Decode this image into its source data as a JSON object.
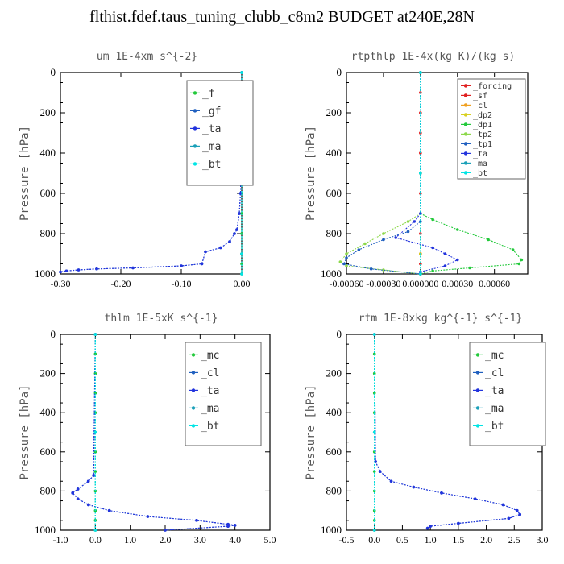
{
  "title": "flthist.fdef.taus_tuning_clubb_c8m2  BUDGET at240E,28N",
  "colors": {
    "green": "#22c93a",
    "blue_dark": "#1f5fbf",
    "blue": "#2233dd",
    "cyan_dark": "#1aa0b8",
    "cyan": "#00e5e5",
    "red": "#e02020",
    "orange": "#f0a020",
    "yellow": "#d8d020",
    "lightgreen": "#8cd84a"
  },
  "chart_data": [
    {
      "type": "line",
      "title": "um  1E-4xm s^{-2}",
      "ylabel": "Pressure [hPa]",
      "xlim": [
        -0.3,
        0.0
      ],
      "ylim": [
        0,
        1000
      ],
      "y_inverted": true,
      "x_ticks": [
        "-0.30",
        "-0.20",
        "-0.10",
        "0.00"
      ],
      "x_tick_values": [
        -0.3,
        -0.2,
        -0.1,
        0.0
      ],
      "y_ticks": [
        "0",
        "200",
        "400",
        "600",
        "800",
        "1000"
      ],
      "legend_position": "top-right",
      "series": [
        {
          "name": "_f",
          "color": "green",
          "x": [
            0,
            0,
            0,
            0,
            0,
            0,
            0,
            0,
            0,
            0,
            0,
            0
          ],
          "y": [
            0,
            100,
            200,
            300,
            400,
            500,
            600,
            700,
            800,
            900,
            950,
            1000
          ]
        },
        {
          "name": "_gf",
          "color": "blue_dark",
          "x": [
            0,
            -0.001,
            -0.002,
            -0.004,
            -0.008,
            -0.012,
            -0.02,
            -0.035,
            -0.06,
            -0.066,
            -0.1,
            -0.18,
            -0.24,
            -0.27,
            -0.29,
            -0.3
          ],
          "y": [
            0,
            300,
            600,
            700,
            780,
            800,
            840,
            870,
            890,
            950,
            960,
            970,
            975,
            980,
            985,
            990
          ]
        },
        {
          "name": "_ta",
          "color": "blue",
          "x": [
            0,
            -0.001,
            -0.002,
            -0.004,
            -0.008,
            -0.012,
            -0.02,
            -0.035,
            -0.06,
            -0.066,
            -0.1,
            -0.18,
            -0.24,
            -0.27,
            -0.29,
            -0.3
          ],
          "y": [
            0,
            300,
            600,
            700,
            780,
            800,
            840,
            870,
            890,
            950,
            960,
            970,
            975,
            980,
            985,
            990
          ]
        },
        {
          "name": "_ma",
          "color": "cyan_dark",
          "x": [
            0,
            0,
            0,
            0
          ],
          "y": [
            0,
            500,
            900,
            1000
          ]
        },
        {
          "name": "_bt",
          "color": "cyan",
          "x": [
            0,
            0,
            0,
            0
          ],
          "y": [
            0,
            500,
            900,
            1000
          ]
        }
      ]
    },
    {
      "type": "line",
      "title": "rtpthlp  1E-4x(kg K)/(kg s)",
      "ylabel": "Pressure [hPa]",
      "xlim": [
        -0.0006,
        0.00087
      ],
      "ylim": [
        0,
        1000
      ],
      "y_inverted": true,
      "x_ticks": [
        "-0.00060",
        "-0.00030",
        "0.000000",
        "0.00030",
        "0.00060"
      ],
      "x_tick_values": [
        -0.0006,
        -0.0003,
        0.0,
        0.0003,
        0.0006
      ],
      "y_ticks": [
        "0",
        "200",
        "400",
        "600",
        "800",
        "1000"
      ],
      "legend_position": "top-right",
      "series": [
        {
          "name": "_forcing",
          "color": "red",
          "x": [
            0,
            0,
            0,
            0,
            0,
            0,
            0,
            0,
            0,
            0,
            0,
            0
          ],
          "y": [
            0,
            100,
            200,
            300,
            400,
            500,
            600,
            700,
            800,
            900,
            950,
            1000
          ]
        },
        {
          "name": "_sf",
          "color": "red",
          "x": [
            0,
            0,
            0,
            0
          ],
          "y": [
            0,
            500,
            900,
            1000
          ]
        },
        {
          "name": "_cl",
          "color": "orange",
          "x": [
            0,
            0,
            0,
            0
          ],
          "y": [
            0,
            500,
            900,
            1000
          ]
        },
        {
          "name": "_dp2",
          "color": "yellow",
          "x": [
            0,
            0,
            0,
            0
          ],
          "y": [
            0,
            500,
            900,
            1000
          ]
        },
        {
          "name": "_dp1",
          "color": "green",
          "x": [
            0,
            0,
            0.0001,
            0.0003,
            0.00055,
            0.00075,
            0.00082,
            0.0008,
            0.0004,
            0.0001,
            0
          ],
          "y": [
            0,
            700,
            730,
            780,
            830,
            880,
            930,
            950,
            970,
            985,
            1000
          ]
        },
        {
          "name": "_tp2",
          "color": "lightgreen",
          "x": [
            0,
            0,
            -0.0001,
            -0.0003,
            -0.00045,
            -0.0006,
            -0.00065,
            -0.0006,
            -0.0003,
            0
          ],
          "y": [
            0,
            700,
            740,
            800,
            850,
            900,
            940,
            960,
            980,
            1000
          ]
        },
        {
          "name": "_tp1",
          "color": "blue_dark",
          "x": [
            0,
            0,
            -0.0001,
            -0.0003,
            -0.0005,
            -0.0006,
            -0.00062,
            -0.0004,
            0
          ],
          "y": [
            0,
            740,
            790,
            830,
            880,
            920,
            950,
            975,
            1000
          ]
        },
        {
          "name": "_ta",
          "color": "blue",
          "x": [
            0,
            0,
            -5e-05,
            -0.0002,
            0.0001,
            0.0002,
            0.0003,
            0.0002,
            0
          ],
          "y": [
            0,
            700,
            740,
            820,
            870,
            900,
            930,
            960,
            990
          ]
        },
        {
          "name": "_ma",
          "color": "cyan_dark",
          "x": [
            0,
            0,
            0
          ],
          "y": [
            0,
            500,
            1000
          ]
        },
        {
          "name": "_bt",
          "color": "cyan",
          "x": [
            0,
            0,
            0
          ],
          "y": [
            0,
            500,
            1000
          ]
        }
      ]
    },
    {
      "type": "line",
      "title": "thlm  1E-5xK s^{-1}",
      "ylabel": "Pressure [hPa]",
      "xlim": [
        -1.0,
        5.0
      ],
      "ylim": [
        0,
        1000
      ],
      "y_inverted": true,
      "x_ticks": [
        "-1.0",
        "0.0",
        "1.0",
        "2.0",
        "3.0",
        "4.0",
        "5.0"
      ],
      "x_tick_values": [
        -1,
        0,
        1,
        2,
        3,
        4,
        5
      ],
      "y_ticks": [
        "0",
        "200",
        "400",
        "600",
        "800",
        "1000"
      ],
      "legend_position": "top-right",
      "series": [
        {
          "name": "_mc",
          "color": "green",
          "x": [
            0,
            0,
            0,
            0,
            0,
            0,
            0,
            0,
            0,
            0,
            0,
            0
          ],
          "y": [
            0,
            100,
            200,
            300,
            400,
            500,
            600,
            700,
            800,
            900,
            950,
            1000
          ]
        },
        {
          "name": "_cl",
          "color": "blue_dark",
          "x": [
            0,
            -0.05,
            -0.2,
            -0.5,
            -0.65,
            -0.5,
            -0.2,
            0.4,
            1.5,
            2.9,
            3.8,
            4.0,
            3.8,
            2.0
          ],
          "y": [
            0,
            720,
            750,
            790,
            810,
            840,
            870,
            900,
            930,
            950,
            970,
            975,
            980,
            1000
          ]
        },
        {
          "name": "_ta",
          "color": "blue",
          "x": [
            0,
            -0.05,
            -0.2,
            -0.5,
            -0.65,
            -0.5,
            -0.2,
            0.4,
            1.5,
            2.9,
            3.8,
            4.0,
            3.8,
            2.0
          ],
          "y": [
            0,
            720,
            750,
            790,
            810,
            840,
            870,
            900,
            930,
            950,
            970,
            975,
            980,
            1000
          ]
        },
        {
          "name": "_ma",
          "color": "cyan_dark",
          "x": [
            0,
            0,
            0
          ],
          "y": [
            0,
            500,
            1000
          ]
        },
        {
          "name": "_bt",
          "color": "cyan",
          "x": [
            0,
            0,
            0
          ],
          "y": [
            0,
            500,
            1000
          ]
        }
      ]
    },
    {
      "type": "line",
      "title": "rtm  1E-8xkg kg^{-1} s^{-1}",
      "ylabel": "Pressure [hPa]",
      "xlim": [
        -0.5,
        3.0
      ],
      "ylim": [
        0,
        1000
      ],
      "y_inverted": true,
      "x_ticks": [
        "-0.5",
        "0.0",
        "0.5",
        "1.0",
        "1.5",
        "2.0",
        "2.5",
        "3.0"
      ],
      "x_tick_values": [
        -0.5,
        0,
        0.5,
        1.0,
        1.5,
        2.0,
        2.5,
        3.0
      ],
      "y_ticks": [
        "0",
        "200",
        "400",
        "600",
        "800",
        "1000"
      ],
      "legend_position": "top-right",
      "series": [
        {
          "name": "_mc",
          "color": "green",
          "x": [
            0,
            0,
            0,
            0,
            0,
            0,
            0,
            0,
            0,
            0,
            0,
            0
          ],
          "y": [
            0,
            100,
            200,
            300,
            400,
            500,
            600,
            700,
            800,
            900,
            950,
            1000
          ]
        },
        {
          "name": "_cl",
          "color": "blue_dark",
          "x": [
            0,
            0.02,
            0.1,
            0.3,
            0.7,
            1.2,
            1.8,
            2.3,
            2.55,
            2.6,
            2.4,
            1.5,
            1.0,
            0.95
          ],
          "y": [
            0,
            650,
            700,
            750,
            780,
            810,
            840,
            870,
            900,
            920,
            940,
            965,
            980,
            990
          ]
        },
        {
          "name": "_ta",
          "color": "blue",
          "x": [
            0,
            0.02,
            0.1,
            0.3,
            0.7,
            1.2,
            1.8,
            2.3,
            2.55,
            2.6,
            2.4,
            1.5,
            1.0,
            0.95
          ],
          "y": [
            0,
            650,
            700,
            750,
            780,
            810,
            840,
            870,
            900,
            920,
            940,
            965,
            980,
            990
          ]
        },
        {
          "name": "_ma",
          "color": "cyan_dark",
          "x": [
            0,
            0,
            0
          ],
          "y": [
            0,
            500,
            1000
          ]
        },
        {
          "name": "_bt",
          "color": "cyan",
          "x": [
            0,
            0,
            0
          ],
          "y": [
            0,
            500,
            1000
          ]
        }
      ]
    }
  ]
}
